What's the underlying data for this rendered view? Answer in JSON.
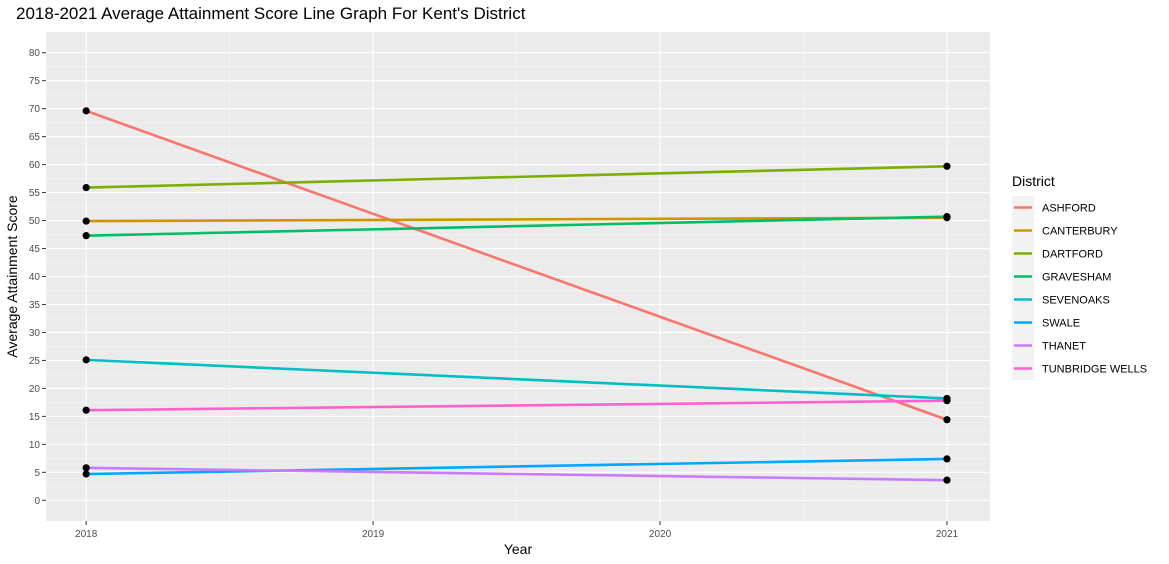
{
  "chart_data": {
    "type": "line",
    "title": "2018-2021 Average Attainment Score Line Graph For Kent's District",
    "xlabel": "Year",
    "ylabel": "Average Attainment Score",
    "x": [
      2018,
      2021
    ],
    "x_ticks": [
      2018,
      2019,
      2020,
      2021
    ],
    "x_tick_labels": [
      "2018",
      "2019",
      "2020",
      "2021"
    ],
    "y_ticks": [
      0,
      5,
      10,
      15,
      20,
      25,
      30,
      35,
      40,
      45,
      50,
      55,
      60,
      65,
      70,
      75,
      80
    ],
    "y_tick_labels": [
      "0",
      "5",
      "10",
      "15",
      "20",
      "25",
      "30",
      "35",
      "40",
      "45",
      "50",
      "55",
      "60",
      "65",
      "70",
      "75",
      "80"
    ],
    "xlim": [
      2017.86,
      2021.15
    ],
    "ylim": [
      -3.7,
      83.7
    ],
    "grid": true,
    "legend": {
      "title": "District",
      "position": "right"
    },
    "series": [
      {
        "name": "ASHFORD",
        "color": "#F8766D",
        "values": [
          69.6,
          14.4
        ]
      },
      {
        "name": "CANTERBURY",
        "color": "#CD9600",
        "values": [
          49.9,
          50.5
        ]
      },
      {
        "name": "DARTFORD",
        "color": "#7CAE00",
        "values": [
          55.9,
          59.7
        ]
      },
      {
        "name": "GRAVESHAM",
        "color": "#00BE67",
        "values": [
          47.3,
          50.7
        ]
      },
      {
        "name": "SEVENOAKS",
        "color": "#00BFC4",
        "values": [
          25.1,
          18.2
        ]
      },
      {
        "name": "SWALE",
        "color": "#00A9FF",
        "values": [
          4.7,
          7.4
        ]
      },
      {
        "name": "THANET",
        "color": "#C77CFF",
        "values": [
          5.8,
          3.6
        ]
      },
      {
        "name": "TUNBRIDGE WELLS",
        "color": "#FF61CC",
        "values": [
          16.1,
          17.8
        ]
      }
    ]
  }
}
